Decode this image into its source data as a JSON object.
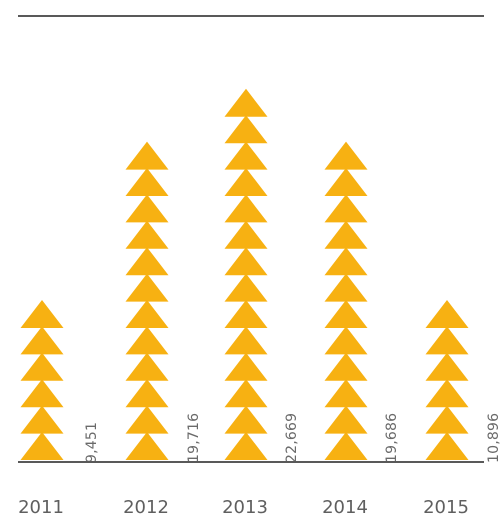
{
  "chart_data": {
    "type": "bar",
    "categories": [
      "2011",
      "2012",
      "2013",
      "2014",
      "2015"
    ],
    "values": [
      9451,
      19716,
      22669,
      19686,
      10896
    ],
    "value_labels": [
      "9,451",
      "19,716",
      "22,669",
      "19,686",
      "10,896"
    ],
    "triangle_counts": [
      6,
      12,
      14,
      12,
      6
    ],
    "title": "",
    "xlabel": "",
    "ylabel": "",
    "grid": false,
    "legend": "none"
  },
  "colors": {
    "bar": "#F7B112",
    "axis": "#595959",
    "top_rule": "#595959",
    "tick_text": "#5f5f5f",
    "value_text": "#6a6a6a",
    "background": "#ffffff"
  }
}
